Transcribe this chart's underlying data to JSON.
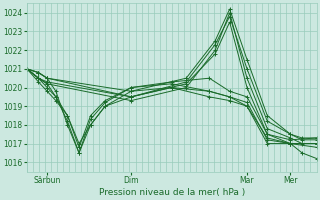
{
  "xlabel": "Pression niveau de la mer( hPa )",
  "ylim": [
    1015.5,
    1024.5
  ],
  "yticks": [
    1016,
    1017,
    1018,
    1019,
    1020,
    1021,
    1022,
    1023,
    1024
  ],
  "xtick_labels": [
    "Sârbun",
    "Dim",
    "Mar",
    "Mer"
  ],
  "xtick_positions": [
    0.07,
    0.36,
    0.76,
    0.91
  ],
  "bg_color": "#cce8e0",
  "grid_color": "#99ccbb",
  "line_color": "#1a6b2a",
  "n_vlines": 48,
  "series": [
    {
      "x": [
        0.0,
        0.04,
        0.07,
        0.1,
        0.14,
        0.18,
        0.22,
        0.27,
        0.36,
        0.5,
        0.63,
        0.7,
        0.76,
        0.83,
        0.91,
        1.0
      ],
      "y": [
        1021.0,
        1020.5,
        1020.2,
        1019.5,
        1018.2,
        1016.5,
        1018.3,
        1019.2,
        1020.0,
        1020.2,
        1019.8,
        1019.5,
        1019.2,
        1017.2,
        1017.0,
        1016.8
      ]
    },
    {
      "x": [
        0.0,
        0.04,
        0.07,
        0.1,
        0.14,
        0.18,
        0.22,
        0.27,
        0.36,
        0.5,
        0.63,
        0.7,
        0.76,
        0.83,
        0.91,
        1.0
      ],
      "y": [
        1021.0,
        1020.8,
        1020.5,
        1019.8,
        1018.0,
        1016.5,
        1018.0,
        1019.0,
        1019.8,
        1020.0,
        1019.5,
        1019.3,
        1019.0,
        1017.0,
        1017.0,
        1017.0
      ]
    },
    {
      "x": [
        0.0,
        0.04,
        0.07,
        0.1,
        0.14,
        0.18,
        0.22,
        0.27,
        0.36,
        0.5,
        0.63,
        0.7,
        0.76,
        0.83,
        0.91,
        1.0
      ],
      "y": [
        1021.0,
        1020.5,
        1020.0,
        1019.5,
        1018.5,
        1017.0,
        1018.0,
        1019.0,
        1019.5,
        1020.0,
        1019.8,
        1019.5,
        1019.0,
        1017.3,
        1017.0,
        1017.0
      ]
    },
    {
      "x": [
        0.0,
        0.04,
        0.07,
        0.1,
        0.14,
        0.18,
        0.22,
        0.27,
        0.36,
        0.5,
        0.63,
        0.7,
        0.76,
        0.83,
        0.91,
        1.0
      ],
      "y": [
        1021.0,
        1020.3,
        1019.8,
        1019.3,
        1018.5,
        1016.8,
        1018.5,
        1019.3,
        1020.0,
        1020.3,
        1020.5,
        1019.8,
        1019.5,
        1017.5,
        1017.2,
        1017.3
      ]
    },
    {
      "x": [
        0.0,
        0.04,
        0.07,
        0.36,
        0.55,
        0.65,
        0.7,
        0.76,
        0.83,
        0.91,
        0.95,
        1.0
      ],
      "y": [
        1021.0,
        1020.8,
        1020.5,
        1019.5,
        1020.2,
        1021.8,
        1023.5,
        1020.0,
        1017.5,
        1017.0,
        1016.5,
        1016.2
      ]
    },
    {
      "x": [
        0.0,
        0.04,
        0.07,
        0.36,
        0.55,
        0.65,
        0.7,
        0.76,
        0.83,
        0.91,
        0.95,
        1.0
      ],
      "y": [
        1021.0,
        1020.5,
        1020.2,
        1019.3,
        1020.0,
        1022.0,
        1024.0,
        1020.5,
        1017.8,
        1017.3,
        1017.0,
        1017.0
      ]
    },
    {
      "x": [
        0.0,
        0.04,
        0.07,
        0.36,
        0.55,
        0.65,
        0.7,
        0.76,
        0.83,
        0.91,
        0.95,
        1.0
      ],
      "y": [
        1021.0,
        1020.5,
        1020.3,
        1019.5,
        1020.3,
        1022.3,
        1023.8,
        1021.0,
        1018.2,
        1017.5,
        1017.2,
        1017.2
      ]
    },
    {
      "x": [
        0.0,
        0.04,
        0.07,
        0.36,
        0.55,
        0.65,
        0.7,
        0.76,
        0.83,
        0.91,
        0.95,
        1.0
      ],
      "y": [
        1021.0,
        1020.8,
        1020.5,
        1019.8,
        1020.5,
        1022.5,
        1024.2,
        1021.5,
        1018.5,
        1017.5,
        1017.3,
        1017.3
      ]
    }
  ]
}
